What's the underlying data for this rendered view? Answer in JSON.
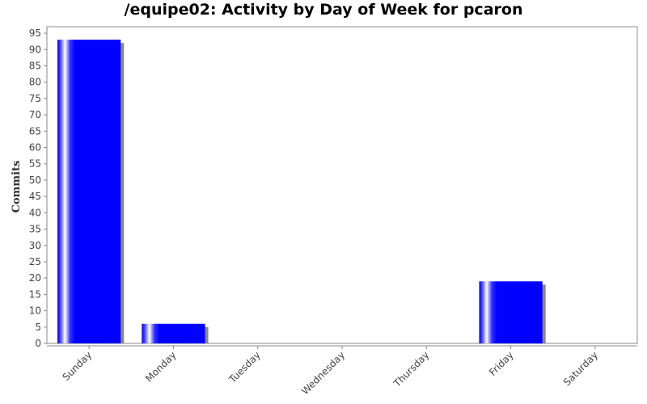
{
  "chart_data": {
    "type": "bar",
    "title": "/equipe02: Activity by Day of Week for pcaron",
    "xlabel": "",
    "ylabel": "Commits",
    "categories": [
      "Sunday",
      "Monday",
      "Tuesday",
      "Wednesday",
      "Thursday",
      "Friday",
      "Saturday"
    ],
    "values": [
      93,
      6,
      0,
      0,
      0,
      19,
      0
    ],
    "ylim": [
      0,
      97
    ],
    "yticks": [
      0,
      5,
      10,
      15,
      20,
      25,
      30,
      35,
      40,
      45,
      50,
      55,
      60,
      65,
      70,
      75,
      80,
      85,
      90,
      95
    ],
    "grid": false,
    "bar_color": "#0000ff",
    "shadow_color": "#888888"
  }
}
